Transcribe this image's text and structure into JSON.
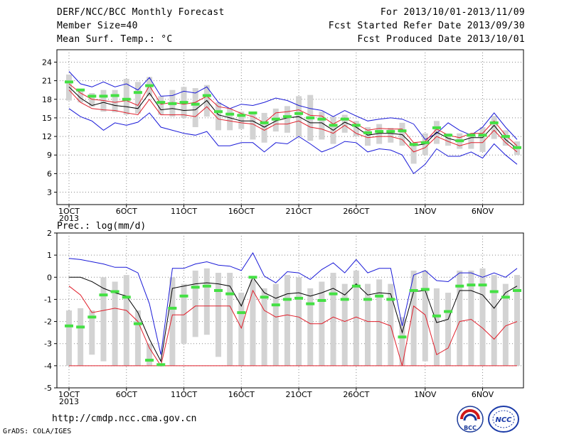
{
  "header": {
    "title": "DERF/NCC/BCC Monthly Forecast",
    "member": "Member Size=40",
    "variable": "Mean Surf. Temp.: °C",
    "period": "For 2013/10/01-2013/11/09",
    "refer_date": "Fcst Started Refer Date 2013/09/30",
    "produced_date": "Fcst Produced Date 2013/10/01"
  },
  "footer": {
    "url": "http://cmdp.ncc.cma.gov.cn",
    "credit": "GrADS: COLA/IGES",
    "logo_bcc": "BCC",
    "logo_ncc": "NCC"
  },
  "colors": {
    "box": "#d3d3d3",
    "median": "#44e044",
    "envelope": "#1a1ad8",
    "spread": "#e0202c",
    "mean": "#000000",
    "grid": "#888888"
  },
  "chart_data": [
    {
      "type": "line",
      "title": "Mean Surf. Temp.: °C",
      "ylim": [
        1,
        26
      ],
      "yticks": [
        3,
        6,
        9,
        12,
        15,
        18,
        21,
        24
      ],
      "grid": true,
      "x": [
        "Oct 1",
        "Oct 2",
        "Oct 3",
        "Oct 4",
        "Oct 5",
        "Oct 6",
        "Oct 7",
        "Oct 8",
        "Oct 9",
        "Oct 10",
        "Oct 11",
        "Oct 12",
        "Oct 13",
        "Oct 14",
        "Oct 15",
        "Oct 16",
        "Oct 17",
        "Oct 18",
        "Oct 19",
        "Oct 20",
        "Oct 21",
        "Oct 22",
        "Oct 23",
        "Oct 24",
        "Oct 25",
        "Oct 26",
        "Oct 27",
        "Oct 28",
        "Oct 29",
        "Oct 30",
        "Oct 31",
        "Nov 1",
        "Nov 2",
        "Nov 3",
        "Nov 4",
        "Nov 5",
        "Nov 6",
        "Nov 7",
        "Nov 8",
        "Nov 9"
      ],
      "xtick_labels": [
        {
          "index": 0,
          "label": "1OCT",
          "sub": "2013"
        },
        {
          "index": 5,
          "label": "6OCT"
        },
        {
          "index": 10,
          "label": "11OCT"
        },
        {
          "index": 15,
          "label": "16OCT"
        },
        {
          "index": 20,
          "label": "21OCT"
        },
        {
          "index": 25,
          "label": "26OCT"
        },
        {
          "index": 31,
          "label": "1NOV"
        },
        {
          "index": 36,
          "label": "6NOV"
        }
      ],
      "series": [
        {
          "role": "max",
          "values": [
            22.5,
            20.5,
            20,
            20.8,
            20,
            20.5,
            19.5,
            21.5,
            18.5,
            18.6,
            19.3,
            19,
            20,
            17.5,
            16.5,
            17.2,
            17,
            17.5,
            18.2,
            17.8,
            17,
            16.5,
            16.2,
            15.2,
            16.2,
            15.3,
            14.5,
            14.8,
            15,
            14.8,
            14,
            11.5,
            12.5,
            14.2,
            13,
            12.2,
            13.5,
            15.8,
            13.5,
            11.5
          ]
        },
        {
          "role": "upper",
          "values": [
            20.5,
            19,
            18,
            17.8,
            17.5,
            17.8,
            17,
            20.2,
            17.2,
            17.5,
            17.2,
            17.5,
            18.5,
            16.8,
            16.5,
            15.7,
            15.2,
            14.2,
            15.8,
            16,
            16.3,
            15.4,
            15.3,
            14,
            15,
            14,
            13,
            13.3,
            13.2,
            13.2,
            11,
            11.2,
            13.2,
            12.2,
            11.8,
            12.5,
            12.5,
            14.5,
            12.2,
            10.5
          ]
        },
        {
          "role": "mean",
          "values": [
            20,
            18.2,
            17,
            17.5,
            17,
            16.8,
            16.5,
            19,
            16.3,
            16.5,
            16.2,
            16.3,
            17.8,
            15.5,
            15,
            14.5,
            14.5,
            13.5,
            14.5,
            15,
            15.2,
            14.2,
            14.2,
            13,
            14.3,
            13.5,
            12.2,
            12.5,
            12.5,
            12.3,
            10.5,
            10.8,
            12.7,
            11.7,
            11.2,
            11.8,
            11.8,
            13.8,
            11.5,
            10
          ]
        },
        {
          "role": "lower",
          "values": [
            19.5,
            17.5,
            16.5,
            16.3,
            16.2,
            15.8,
            15.5,
            18,
            15.5,
            15.5,
            15.5,
            15.2,
            16.8,
            14.8,
            14.5,
            14.2,
            14,
            13,
            14,
            14,
            14.5,
            13.5,
            13.2,
            12.5,
            13.8,
            12.5,
            11.8,
            12,
            12,
            11.5,
            9.5,
            10.2,
            12,
            11.2,
            10.5,
            11,
            11,
            13,
            11,
            9.5
          ]
        },
        {
          "role": "min",
          "values": [
            16.5,
            15.2,
            14.5,
            13,
            14.2,
            13.8,
            14.3,
            15.8,
            13.5,
            13,
            12.5,
            12.2,
            12.8,
            10.5,
            10.5,
            11,
            11,
            9.5,
            11,
            10.8,
            12,
            10.8,
            9.5,
            10.2,
            11.2,
            11,
            9.5,
            10,
            9.8,
            9,
            6,
            7.5,
            10,
            8.8,
            8.8,
            9.5,
            8.5,
            10.8,
            9,
            7.5
          ]
        },
        {
          "role": "median",
          "values": [
            20.8,
            19.5,
            18.5,
            18.5,
            18.6,
            18,
            19.1,
            20.2,
            17.5,
            17.3,
            17.5,
            17.2,
            18.6,
            16,
            15.6,
            15.4,
            15.8,
            14.2,
            14.8,
            15.2,
            15.7,
            15,
            14.8,
            13.8,
            14.8,
            13.8,
            12.6,
            12.8,
            12.8,
            12.9,
            10.7,
            11,
            13.4,
            12.2,
            11.3,
            12.2,
            12.2,
            14.2,
            12,
            10.2
          ]
        },
        {
          "role": "box_high",
          "values": [
            22,
            19.5,
            19,
            19.5,
            19.5,
            21.3,
            20.8,
            21.6,
            18.5,
            19.5,
            20,
            19.8,
            20.3,
            17.5,
            16.5,
            16,
            16,
            15.8,
            16.5,
            16.9,
            18.5,
            18.7,
            16,
            15.2,
            15.5,
            14.5,
            13.5,
            14,
            13.4,
            14.2,
            11,
            12.5,
            14.5,
            12.5,
            12.5,
            12.5,
            13.5,
            15.3,
            13,
            11.2
          ]
        },
        {
          "role": "box_low",
          "values": [
            17.8,
            17.5,
            16.8,
            16,
            15.9,
            15.5,
            15.7,
            18.5,
            15.5,
            15.2,
            15,
            13.5,
            15.2,
            13,
            13,
            13.2,
            11.5,
            11,
            12.8,
            12.6,
            12,
            11.3,
            11.5,
            10.8,
            12.6,
            12,
            10.5,
            10.8,
            11,
            10.5,
            7.6,
            9,
            10.8,
            10.5,
            10,
            10,
            9.5,
            11.6,
            10.5,
            9
          ]
        }
      ]
    },
    {
      "type": "line",
      "title": "Prec.: log(mm/d)",
      "ylim": [
        -5,
        2
      ],
      "yticks": [
        -5,
        -4,
        -3,
        -2,
        -1,
        0,
        1,
        2
      ],
      "grid": true,
      "x": [
        "Oct 1",
        "Oct 2",
        "Oct 3",
        "Oct 4",
        "Oct 5",
        "Oct 6",
        "Oct 7",
        "Oct 8",
        "Oct 9",
        "Oct 10",
        "Oct 11",
        "Oct 12",
        "Oct 13",
        "Oct 14",
        "Oct 15",
        "Oct 16",
        "Oct 17",
        "Oct 18",
        "Oct 19",
        "Oct 20",
        "Oct 21",
        "Oct 22",
        "Oct 23",
        "Oct 24",
        "Oct 25",
        "Oct 26",
        "Oct 27",
        "Oct 28",
        "Oct 29",
        "Oct 30",
        "Oct 31",
        "Nov 1",
        "Nov 2",
        "Nov 3",
        "Nov 4",
        "Nov 5",
        "Nov 6",
        "Nov 7",
        "Nov 8",
        "Nov 9"
      ],
      "xtick_labels": [
        {
          "index": 0,
          "label": "1OCT",
          "sub": "2013"
        },
        {
          "index": 5,
          "label": "6OCT"
        },
        {
          "index": 10,
          "label": "11OCT"
        },
        {
          "index": 15,
          "label": "16OCT"
        },
        {
          "index": 20,
          "label": "21OCT"
        },
        {
          "index": 25,
          "label": "26OCT"
        },
        {
          "index": 31,
          "label": "1NOV"
        },
        {
          "index": 36,
          "label": "6NOV"
        }
      ],
      "series": [
        {
          "role": "max",
          "values": [
            0.85,
            0.8,
            0.7,
            0.6,
            0.45,
            0.45,
            0.2,
            -1.2,
            -3.5,
            0.4,
            0.4,
            0.6,
            0.7,
            0.55,
            0.5,
            0.3,
            1.1,
            0.05,
            -0.25,
            0.25,
            0.2,
            -0.1,
            0.35,
            0.65,
            0.2,
            0.8,
            0.2,
            0.4,
            0.4,
            -2.2,
            0.1,
            0.3,
            -0.15,
            -0.2,
            0.2,
            0.2,
            0,
            0.2,
            0,
            0.4
          ]
        },
        {
          "role": "mean",
          "values": [
            0,
            0,
            -0.2,
            -0.5,
            -0.7,
            -0.85,
            -1.6,
            -2.8,
            -3.8,
            -0.5,
            -0.4,
            -0.3,
            -0.25,
            -0.3,
            -0.4,
            -1.3,
            0,
            -0.7,
            -0.95,
            -0.75,
            -0.7,
            -0.85,
            -0.7,
            -0.5,
            -0.8,
            -0.3,
            -0.8,
            -0.7,
            -0.75,
            -2.5,
            -0.65,
            -0.6,
            -2.05,
            -1.9,
            -0.6,
            -0.6,
            -0.8,
            -1.4,
            -0.7,
            -0.4
          ]
        },
        {
          "role": "spread",
          "values": [
            -0.4,
            -0.8,
            -1.6,
            -1.5,
            -1.4,
            -1.5,
            -2,
            -3.2,
            -4,
            -1.7,
            -1.7,
            -1.3,
            -1.3,
            -1.3,
            -1.3,
            -2.3,
            -0.6,
            -1.5,
            -1.8,
            -1.7,
            -1.8,
            -2.1,
            -2.1,
            -1.8,
            -2,
            -1.8,
            -2,
            -2,
            -2.2,
            -4,
            -1.3,
            -1.7,
            -3.5,
            -3.2,
            -2,
            -1.9,
            -2.3,
            -2.8,
            -2.2,
            -2
          ]
        },
        {
          "role": "median",
          "values": [
            -2.2,
            -2.25,
            -1.8,
            -0.8,
            -0.65,
            -0.9,
            -2.1,
            -3.75,
            -3.95,
            -1.4,
            -0.85,
            -0.45,
            -0.4,
            -0.6,
            -0.75,
            -1.6,
            0,
            -0.9,
            -1.25,
            -1,
            -0.95,
            -1.2,
            -1.05,
            -0.75,
            -1,
            -0.4,
            -1,
            -0.85,
            -1,
            -2.7,
            -0.6,
            -0.55,
            -1.75,
            -1.55,
            -0.4,
            -0.35,
            -0.35,
            -0.65,
            -0.9,
            -0.6
          ]
        },
        {
          "role": "box_high",
          "values": [
            -1.5,
            -1.4,
            -1.5,
            0,
            -0.2,
            0.1,
            -1.5,
            -3,
            -4,
            0,
            -0.3,
            0.3,
            0.4,
            0.2,
            0.2,
            -0.7,
            -0.1,
            -0.5,
            -0.3,
            0.1,
            0,
            -0.5,
            -0.2,
            0.2,
            -0.3,
            0.3,
            -0.3,
            -0.1,
            -0.3,
            -1.8,
            0.3,
            0.3,
            -0.5,
            -0.7,
            0.3,
            0.3,
            0.4,
            0.1,
            -0.3,
            0.1
          ]
        },
        {
          "role": "box_low",
          "values": [
            -4,
            -4,
            -3.5,
            -3.8,
            -4,
            -4,
            -4,
            -4,
            -4,
            -4,
            -3,
            -2.7,
            -2.6,
            -3.6,
            -4,
            -4,
            -4,
            -4,
            -4,
            -4,
            -4,
            -4,
            -4,
            -4,
            -4,
            -4,
            -4,
            -4,
            -4,
            -4,
            -4,
            -3.8,
            -4,
            -4,
            -4,
            -4,
            -4,
            -4,
            -4,
            -4
          ]
        }
      ]
    }
  ]
}
